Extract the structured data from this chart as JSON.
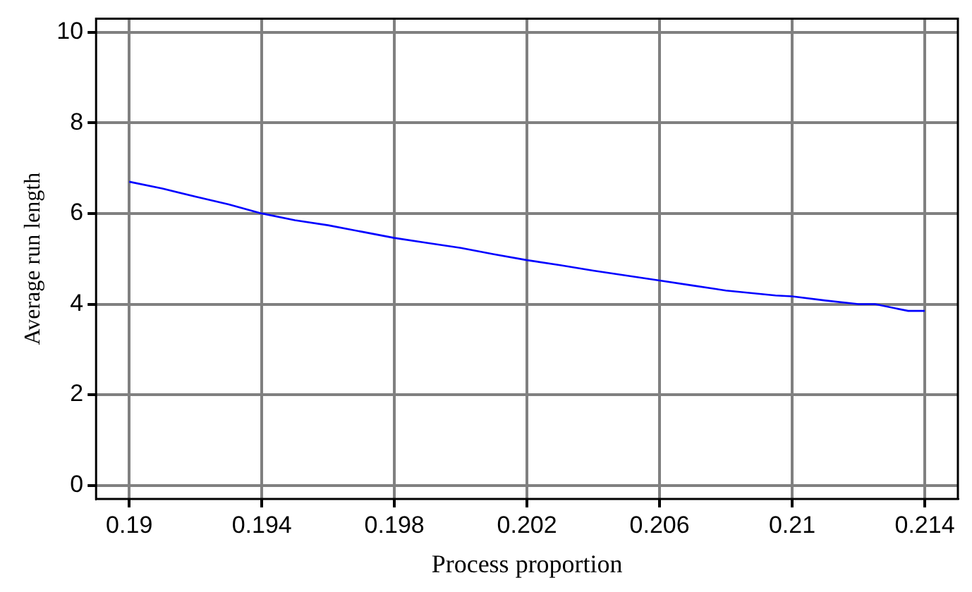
{
  "chart_data": {
    "type": "line",
    "xlabel": "Process proportion",
    "ylabel": "Average run length",
    "x": [
      0.19,
      0.191,
      0.192,
      0.193,
      0.194,
      0.195,
      0.196,
      0.197,
      0.198,
      0.199,
      0.2,
      0.201,
      0.202,
      0.203,
      0.204,
      0.205,
      0.206,
      0.207,
      0.208,
      0.2095,
      0.21,
      0.211,
      0.212,
      0.2125,
      0.2135,
      0.214
    ],
    "series": [
      {
        "color": "#0000ff",
        "values": [
          6.7,
          6.55,
          6.37,
          6.2,
          6.0,
          5.85,
          5.74,
          5.6,
          5.46,
          5.35,
          5.24,
          5.1,
          4.97,
          4.86,
          4.74,
          4.63,
          4.52,
          4.41,
          4.3,
          4.19,
          4.17,
          4.08,
          4.0,
          4.0,
          3.85,
          3.85
        ]
      }
    ],
    "xlim": [
      0.189,
      0.215
    ],
    "xticks": [
      0.19,
      0.194,
      0.198,
      0.202,
      0.206,
      0.21,
      0.214
    ],
    "ylim": [
      -0.3,
      10.3
    ],
    "yticks": [
      0,
      2,
      4,
      6,
      8,
      10
    ],
    "grid": true,
    "legend": false,
    "marker": "none",
    "line_style": "solid"
  }
}
